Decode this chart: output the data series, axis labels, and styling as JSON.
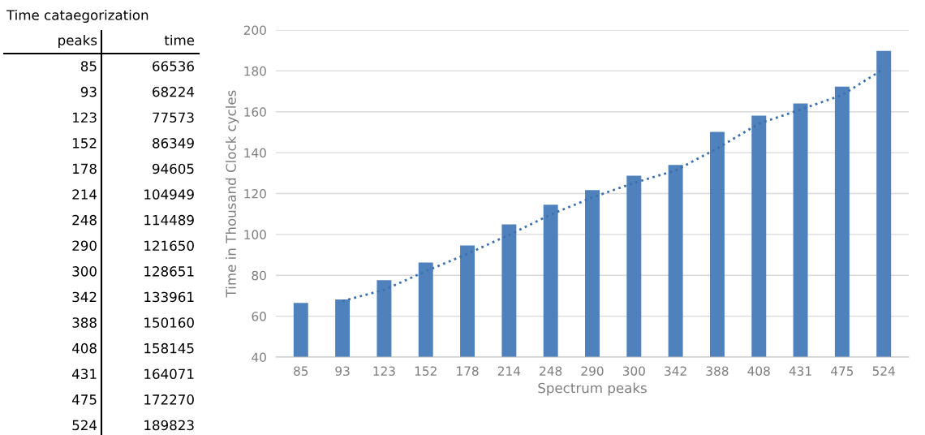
{
  "chart_data": [
    {
      "type": "other",
      "title": "Time cataegorization",
      "annotations": [
        "peaks",
        "time",
        "85",
        "66536",
        "93",
        "68224",
        "123",
        "77573",
        "152",
        "86349",
        "178",
        "94605",
        "214",
        "104949",
        "248",
        "114489",
        "290",
        "121650",
        "300",
        "128651",
        "342",
        "133961",
        "388",
        "150160",
        "408",
        "158145",
        "431",
        "164071",
        "475",
        "172270",
        "524",
        "189823"
      ]
    },
    {
      "type": "bar",
      "categories": [
        "85",
        "93",
        "123",
        "152",
        "178",
        "214",
        "248",
        "290",
        "300",
        "342",
        "388",
        "408",
        "431",
        "475",
        "524"
      ],
      "xlabel": "Spectrum peaks",
      "ylabel": "Time in Thousand Clock cycles",
      "series": [
        {
          "color": "#4f81bd",
          "values": [
            66.5,
            68.2,
            77.6,
            86.3,
            94.6,
            104.9,
            114.5,
            121.7,
            128.7,
            134.0,
            150.2,
            158.1,
            164.1,
            172.3,
            189.8
          ]
        },
        {
          "type": "line",
          "color": "#3b6fae",
          "line_style": "dotted",
          "values": [
            null,
            67.4,
            72.9,
            82.0,
            90.5,
            99.8,
            109.7,
            118.1,
            125.2,
            131.3,
            142.1,
            154.2,
            161.1,
            168.2,
            181.0
          ]
        }
      ],
      "ylim": [
        40,
        200
      ],
      "yticks": [
        40,
        60,
        80,
        100,
        120,
        140,
        160,
        180,
        200
      ],
      "grid": "y"
    }
  ]
}
